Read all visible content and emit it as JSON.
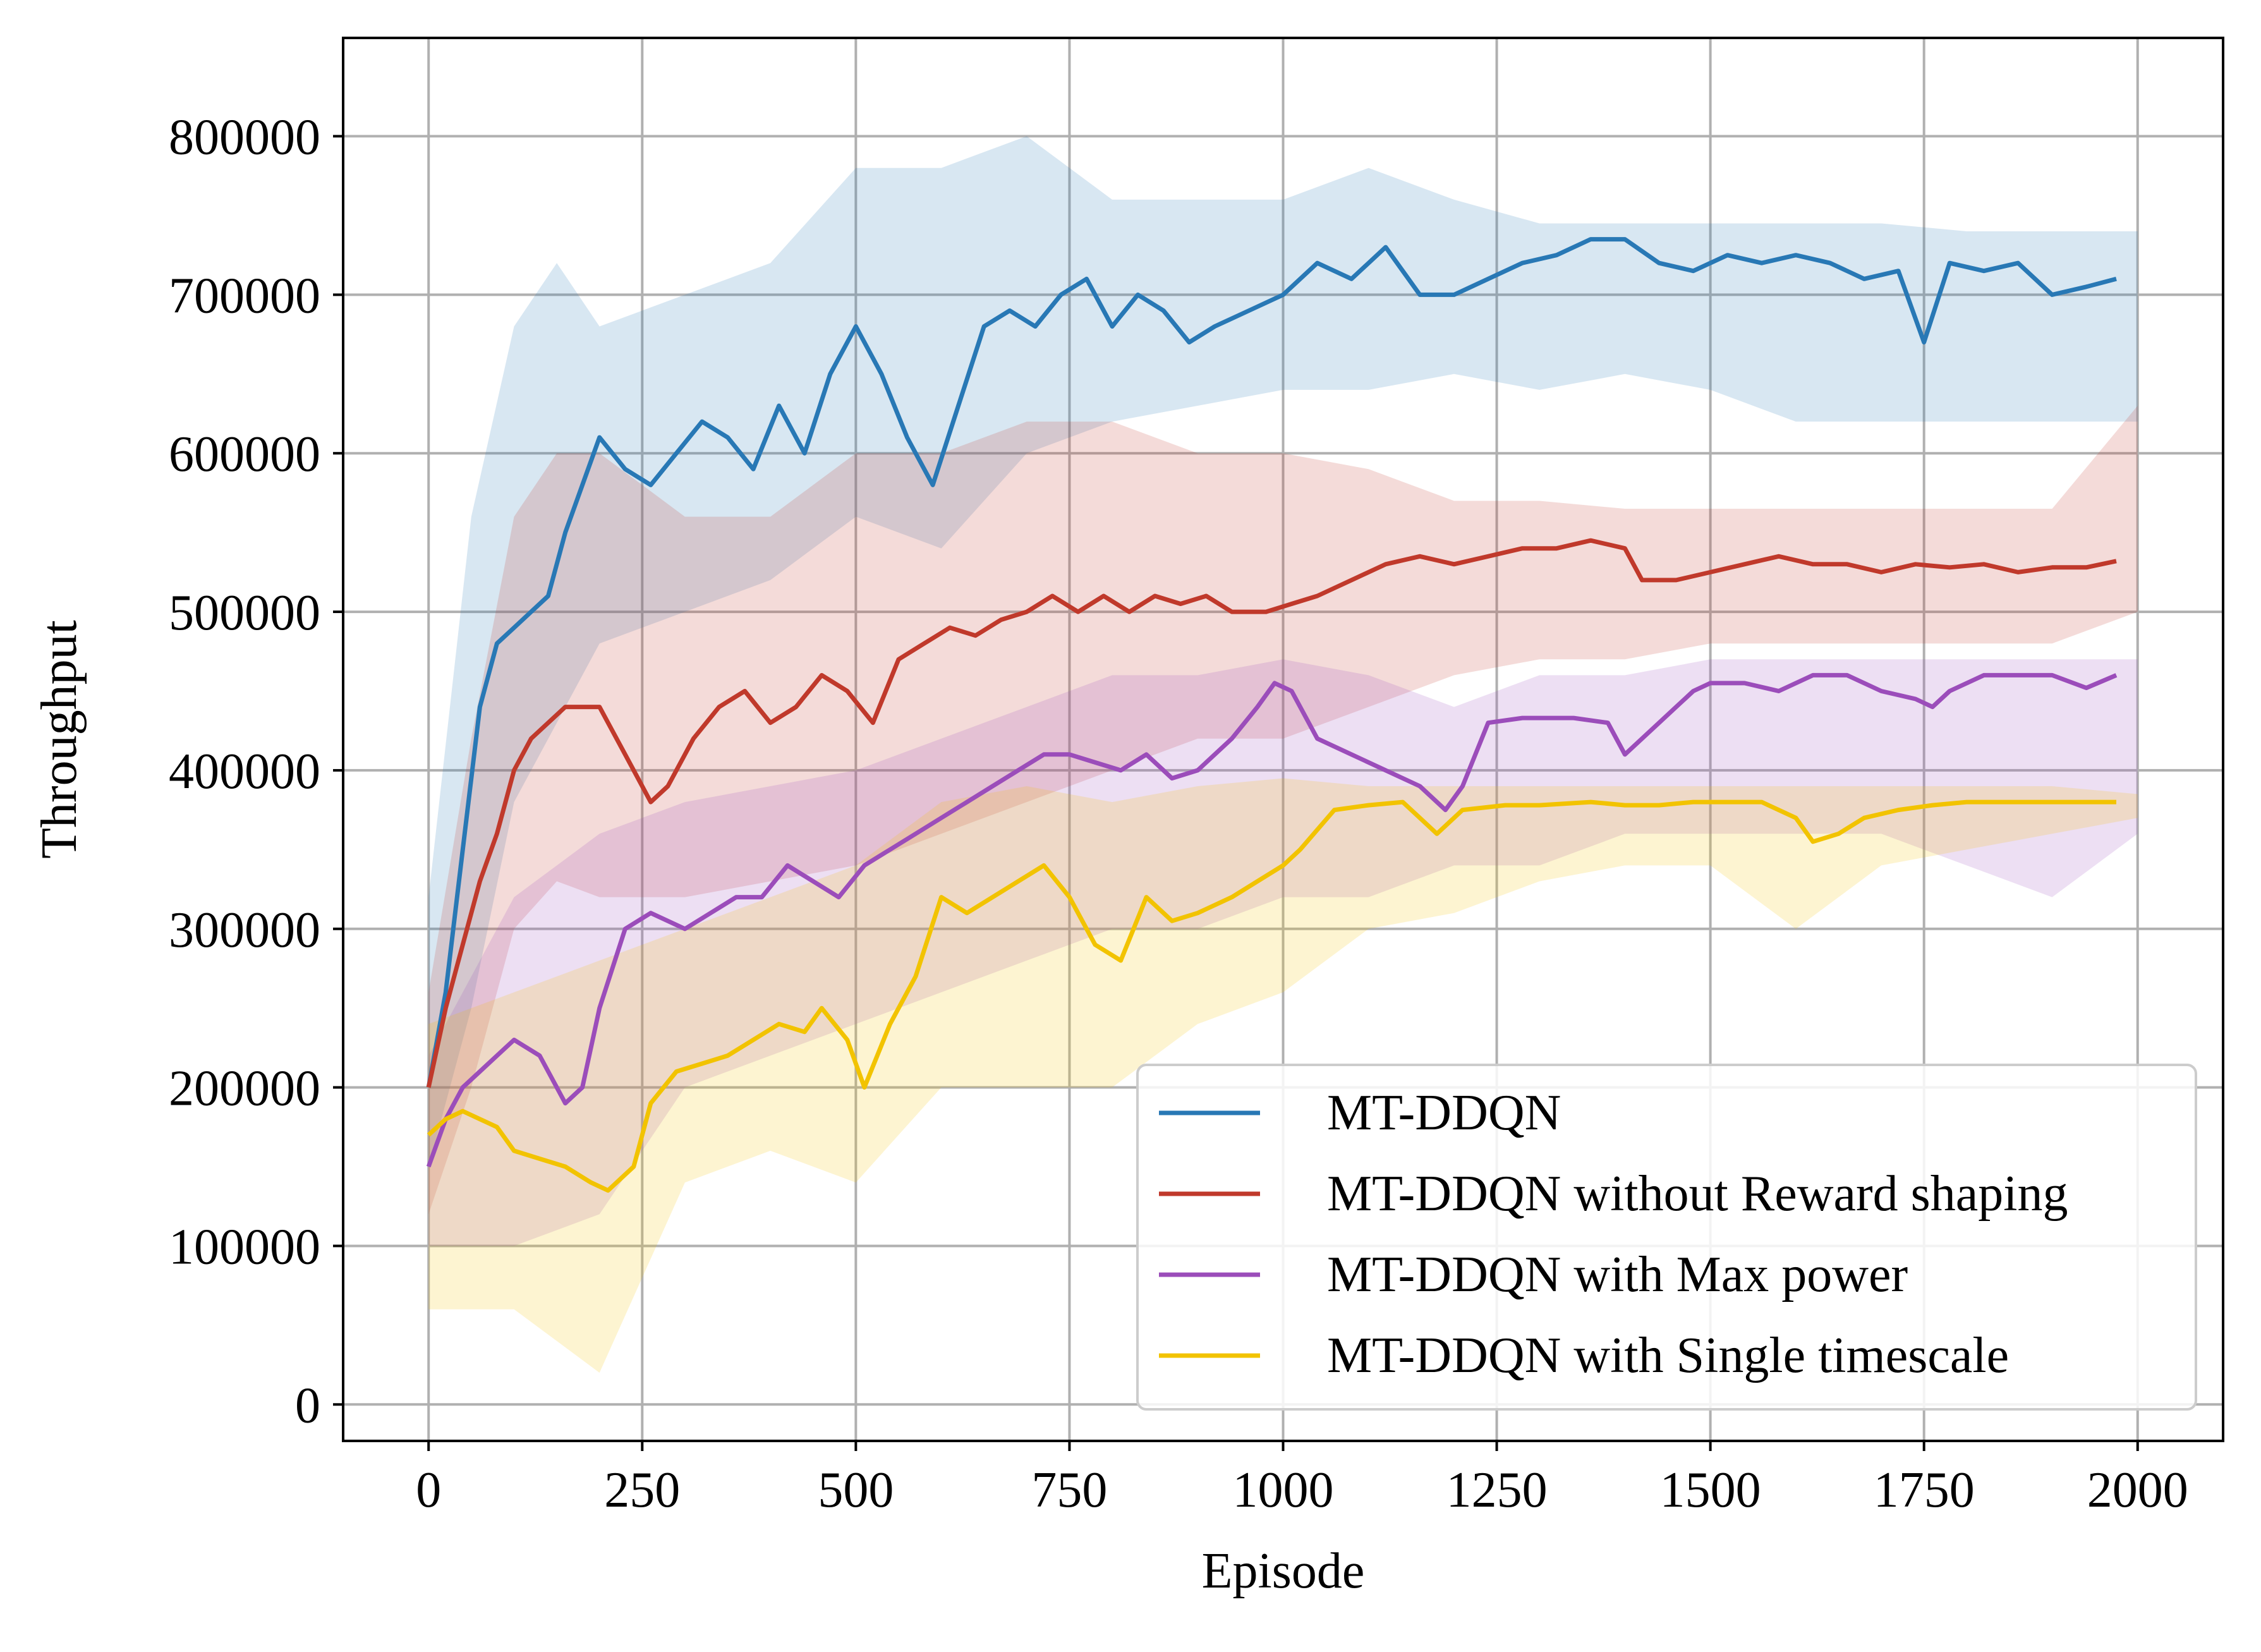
{
  "chart_data": {
    "type": "line",
    "title": "",
    "xlabel": "Episode",
    "ylabel": "Throughput",
    "xlim": [
      -100,
      2100
    ],
    "ylim": [
      -23000,
      862000
    ],
    "xticks": [
      0,
      250,
      500,
      750,
      1000,
      1250,
      1500,
      1750,
      2000
    ],
    "xtick_labels": [
      "0",
      "250",
      "500",
      "750",
      "1000",
      "1250",
      "1500",
      "1750",
      "2000"
    ],
    "yticks": [
      0,
      100000,
      200000,
      300000,
      400000,
      500000,
      600000,
      700000,
      800000
    ],
    "ytick_labels": [
      "0",
      "100000",
      "200000",
      "300000",
      "400000",
      "500000",
      "600000",
      "700000",
      "800000"
    ],
    "grid": true,
    "legend_position": "lower-right",
    "series": [
      {
        "name": "MT-DDQN",
        "color": "#2878b5",
        "raw_band": [
          [
            0,
            150000,
            320000
          ],
          [
            50,
            250000,
            560000
          ],
          [
            100,
            380000,
            680000
          ],
          [
            150,
            430000,
            720000
          ],
          [
            200,
            480000,
            680000
          ],
          [
            300,
            500000,
            700000
          ],
          [
            400,
            520000,
            720000
          ],
          [
            500,
            560000,
            780000
          ],
          [
            600,
            540000,
            780000
          ],
          [
            700,
            600000,
            800000
          ],
          [
            800,
            620000,
            760000
          ],
          [
            900,
            630000,
            760000
          ],
          [
            1000,
            640000,
            760000
          ],
          [
            1100,
            640000,
            780000
          ],
          [
            1200,
            650000,
            760000
          ],
          [
            1300,
            640000,
            745000
          ],
          [
            1400,
            650000,
            745000
          ],
          [
            1500,
            640000,
            745000
          ],
          [
            1600,
            620000,
            745000
          ],
          [
            1700,
            620000,
            745000
          ],
          [
            1800,
            620000,
            740000
          ],
          [
            1900,
            620000,
            740000
          ],
          [
            2000,
            620000,
            740000
          ]
        ],
        "x": [
          0,
          20,
          40,
          60,
          80,
          100,
          120,
          140,
          160,
          180,
          200,
          230,
          260,
          290,
          320,
          350,
          380,
          410,
          440,
          470,
          500,
          530,
          560,
          590,
          620,
          650,
          680,
          710,
          740,
          770,
          800,
          830,
          860,
          890,
          920,
          960,
          1000,
          1040,
          1080,
          1120,
          1160,
          1200,
          1240,
          1280,
          1320,
          1360,
          1400,
          1440,
          1480,
          1520,
          1560,
          1600,
          1640,
          1680,
          1720,
          1750,
          1780,
          1820,
          1860,
          1900,
          1940,
          1975
        ],
        "y": [
          200000,
          260000,
          350000,
          440000,
          480000,
          490000,
          500000,
          510000,
          550000,
          580000,
          610000,
          590000,
          580000,
          600000,
          620000,
          610000,
          590000,
          630000,
          600000,
          650000,
          680000,
          650000,
          610000,
          580000,
          630000,
          680000,
          690000,
          680000,
          700000,
          710000,
          680000,
          700000,
          690000,
          670000,
          680000,
          690000,
          700000,
          720000,
          710000,
          730000,
          700000,
          700000,
          710000,
          720000,
          725000,
          735000,
          735000,
          720000,
          715000,
          725000,
          720000,
          725000,
          720000,
          710000,
          715000,
          670000,
          720000,
          715000,
          720000,
          700000,
          705000,
          710000
        ]
      },
      {
        "name": "MT-DDQN without Reward shaping",
        "color": "#c0392b",
        "raw_band": [
          [
            0,
            120000,
            260000
          ],
          [
            50,
            200000,
            420000
          ],
          [
            100,
            300000,
            560000
          ],
          [
            150,
            330000,
            600000
          ],
          [
            200,
            320000,
            600000
          ],
          [
            300,
            320000,
            560000
          ],
          [
            400,
            330000,
            560000
          ],
          [
            500,
            340000,
            600000
          ],
          [
            600,
            360000,
            600000
          ],
          [
            700,
            380000,
            620000
          ],
          [
            800,
            400000,
            620000
          ],
          [
            900,
            420000,
            600000
          ],
          [
            1000,
            420000,
            600000
          ],
          [
            1100,
            440000,
            590000
          ],
          [
            1200,
            460000,
            570000
          ],
          [
            1300,
            470000,
            570000
          ],
          [
            1400,
            470000,
            565000
          ],
          [
            1500,
            480000,
            565000
          ],
          [
            1600,
            480000,
            565000
          ],
          [
            1700,
            480000,
            565000
          ],
          [
            1800,
            480000,
            565000
          ],
          [
            1900,
            480000,
            565000
          ],
          [
            2000,
            500000,
            630000
          ]
        ],
        "x": [
          0,
          20,
          40,
          60,
          80,
          100,
          120,
          140,
          160,
          180,
          200,
          230,
          260,
          280,
          310,
          340,
          370,
          400,
          430,
          460,
          490,
          520,
          550,
          580,
          610,
          640,
          670,
          700,
          730,
          760,
          790,
          820,
          850,
          880,
          910,
          940,
          980,
          1010,
          1040,
          1080,
          1120,
          1160,
          1200,
          1240,
          1280,
          1320,
          1360,
          1400,
          1420,
          1460,
          1500,
          1540,
          1580,
          1620,
          1660,
          1700,
          1740,
          1780,
          1820,
          1860,
          1900,
          1940,
          1975
        ],
        "y": [
          200000,
          250000,
          290000,
          330000,
          360000,
          400000,
          420000,
          430000,
          440000,
          440000,
          440000,
          410000,
          380000,
          390000,
          420000,
          440000,
          450000,
          430000,
          440000,
          460000,
          450000,
          430000,
          470000,
          480000,
          490000,
          485000,
          495000,
          500000,
          510000,
          500000,
          510000,
          500000,
          510000,
          505000,
          510000,
          500000,
          500000,
          505000,
          510000,
          520000,
          530000,
          535000,
          530000,
          535000,
          540000,
          540000,
          545000,
          540000,
          520000,
          520000,
          525000,
          530000,
          535000,
          530000,
          530000,
          525000,
          530000,
          528000,
          530000,
          525000,
          528000,
          528000,
          532000
        ]
      },
      {
        "name": "MT-DDQN with Max power",
        "color": "#9b4dba",
        "raw_band": [
          [
            0,
            100000,
            220000
          ],
          [
            100,
            100000,
            320000
          ],
          [
            200,
            120000,
            360000
          ],
          [
            300,
            200000,
            380000
          ],
          [
            400,
            220000,
            390000
          ],
          [
            500,
            240000,
            400000
          ],
          [
            600,
            260000,
            420000
          ],
          [
            700,
            280000,
            440000
          ],
          [
            800,
            300000,
            460000
          ],
          [
            900,
            300000,
            460000
          ],
          [
            1000,
            320000,
            470000
          ],
          [
            1100,
            320000,
            460000
          ],
          [
            1200,
            340000,
            440000
          ],
          [
            1300,
            340000,
            460000
          ],
          [
            1400,
            360000,
            460000
          ],
          [
            1500,
            360000,
            470000
          ],
          [
            1600,
            360000,
            470000
          ],
          [
            1700,
            360000,
            470000
          ],
          [
            1800,
            340000,
            470000
          ],
          [
            1900,
            320000,
            470000
          ],
          [
            2000,
            360000,
            470000
          ]
        ],
        "x": [
          0,
          20,
          40,
          60,
          80,
          100,
          130,
          160,
          180,
          200,
          230,
          260,
          300,
          330,
          360,
          390,
          420,
          450,
          480,
          510,
          540,
          570,
          600,
          630,
          660,
          690,
          720,
          750,
          780,
          810,
          840,
          870,
          900,
          940,
          970,
          990,
          1010,
          1040,
          1080,
          1120,
          1160,
          1190,
          1210,
          1240,
          1280,
          1340,
          1380,
          1400,
          1420,
          1460,
          1480,
          1500,
          1540,
          1580,
          1620,
          1660,
          1700,
          1740,
          1760,
          1780,
          1820,
          1860,
          1900,
          1940,
          1975
        ],
        "y": [
          150000,
          180000,
          200000,
          210000,
          220000,
          230000,
          220000,
          190000,
          200000,
          250000,
          300000,
          310000,
          300000,
          310000,
          320000,
          320000,
          340000,
          330000,
          320000,
          340000,
          350000,
          360000,
          370000,
          380000,
          390000,
          400000,
          410000,
          410000,
          405000,
          400000,
          410000,
          395000,
          400000,
          420000,
          440000,
          455000,
          450000,
          420000,
          410000,
          400000,
          390000,
          375000,
          390000,
          430000,
          433000,
          433000,
          430000,
          410000,
          420000,
          440000,
          450000,
          455000,
          455000,
          450000,
          460000,
          460000,
          450000,
          445000,
          440000,
          450000,
          460000,
          460000,
          460000,
          452000,
          460000
        ]
      },
      {
        "name": "MT-DDQN with Single timescale",
        "color": "#f2c300",
        "raw_band": [
          [
            0,
            60000,
            240000
          ],
          [
            100,
            60000,
            260000
          ],
          [
            200,
            20000,
            280000
          ],
          [
            300,
            140000,
            300000
          ],
          [
            400,
            160000,
            320000
          ],
          [
            500,
            140000,
            340000
          ],
          [
            600,
            200000,
            380000
          ],
          [
            700,
            200000,
            390000
          ],
          [
            800,
            200000,
            380000
          ],
          [
            900,
            240000,
            390000
          ],
          [
            1000,
            260000,
            395000
          ],
          [
            1100,
            300000,
            390000
          ],
          [
            1200,
            310000,
            390000
          ],
          [
            1300,
            330000,
            390000
          ],
          [
            1400,
            340000,
            390000
          ],
          [
            1500,
            340000,
            390000
          ],
          [
            1600,
            300000,
            390000
          ],
          [
            1700,
            340000,
            390000
          ],
          [
            1800,
            350000,
            390000
          ],
          [
            1900,
            360000,
            390000
          ],
          [
            2000,
            370000,
            385000
          ]
        ],
        "x": [
          0,
          20,
          40,
          60,
          80,
          100,
          130,
          160,
          190,
          210,
          240,
          260,
          290,
          320,
          350,
          380,
          410,
          440,
          460,
          490,
          510,
          540,
          570,
          600,
          630,
          660,
          690,
          720,
          750,
          780,
          810,
          840,
          870,
          900,
          940,
          970,
          1000,
          1020,
          1060,
          1100,
          1140,
          1160,
          1180,
          1210,
          1260,
          1300,
          1360,
          1400,
          1440,
          1480,
          1520,
          1560,
          1600,
          1620,
          1650,
          1680,
          1720,
          1760,
          1800,
          1860,
          1920,
          1975
        ],
        "y": [
          170000,
          180000,
          185000,
          180000,
          175000,
          160000,
          155000,
          150000,
          140000,
          135000,
          150000,
          190000,
          210000,
          215000,
          220000,
          230000,
          240000,
          235000,
          250000,
          230000,
          200000,
          240000,
          270000,
          320000,
          310000,
          320000,
          330000,
          340000,
          320000,
          290000,
          280000,
          320000,
          305000,
          310000,
          320000,
          330000,
          340000,
          350000,
          375000,
          378000,
          380000,
          370000,
          360000,
          375000,
          378000,
          378000,
          380000,
          378000,
          378000,
          380000,
          380000,
          380000,
          370000,
          355000,
          360000,
          370000,
          375000,
          378000,
          380000,
          380000,
          380000,
          380000
        ]
      }
    ]
  }
}
